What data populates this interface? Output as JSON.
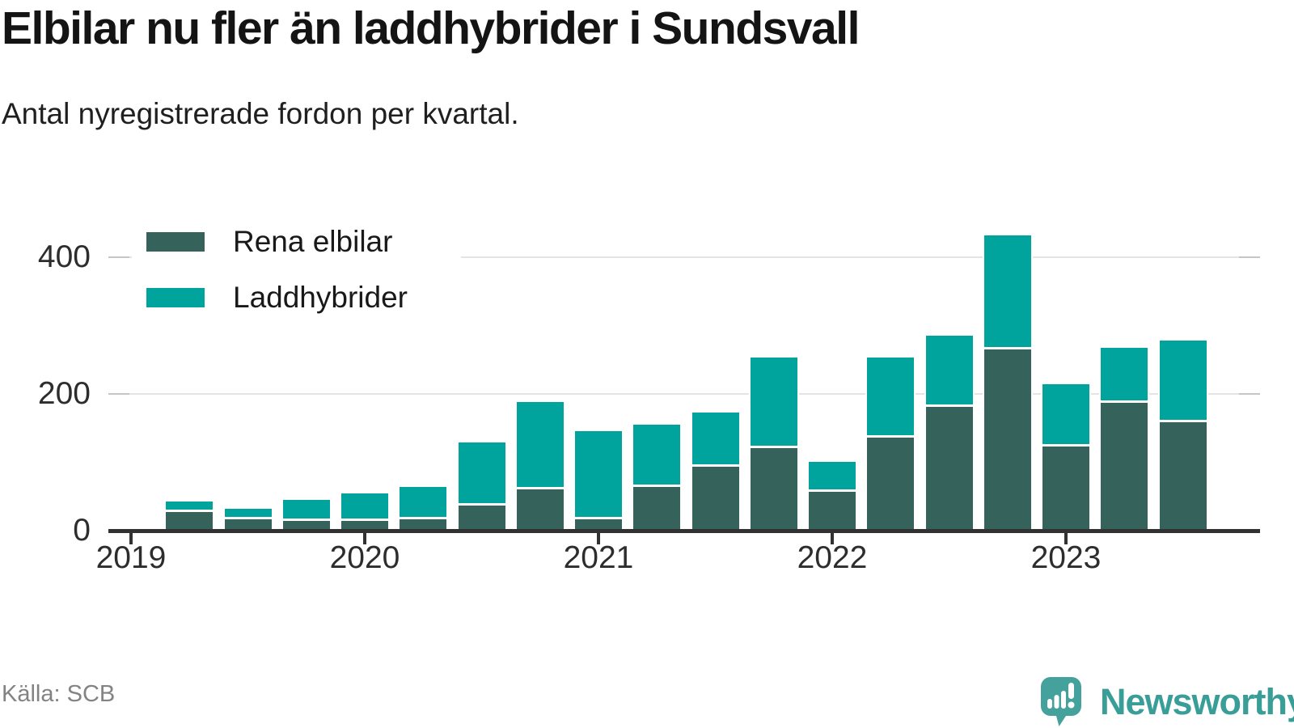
{
  "header": {
    "title": "Elbilar nu fler än laddhybrider i Sundsvall",
    "subtitle": "Antal nyregistrerade fordon per kvartal."
  },
  "chart_data": {
    "type": "bar",
    "stacked": true,
    "title": "Elbilar nu fler än laddhybrider i Sundsvall",
    "subtitle": "Antal nyregistrerade fordon per kvartal.",
    "categories": [
      "2019 K2",
      "2019 K3",
      "2019 K4",
      "2020 K1",
      "2020 K2",
      "2020 K3",
      "2020 K4",
      "2021 K1",
      "2021 K2",
      "2021 K3",
      "2021 K4",
      "2022 K1",
      "2022 K2",
      "2022 K3",
      "2022 K4",
      "2023 K1",
      "2023 K2",
      "2023 K3"
    ],
    "series": [
      {
        "name": "Rena elbilar",
        "color": "#35635b",
        "values": [
          27,
          17,
          14,
          14,
          16,
          37,
          60,
          17,
          64,
          94,
          121,
          57,
          136,
          181,
          265,
          123,
          187,
          159
        ]
      },
      {
        "name": "Laddhybrider",
        "color": "#00a49c",
        "values": [
          16,
          15,
          31,
          40,
          48,
          92,
          128,
          129,
          91,
          79,
          132,
          44,
          117,
          104,
          167,
          91,
          80,
          119
        ]
      }
    ],
    "xlabel": "",
    "ylabel": "",
    "x_tick_labels": [
      "2019",
      "2020",
      "2021",
      "2022",
      "2023"
    ],
    "y_ticks": [
      0,
      200,
      400
    ],
    "ylim": [
      0,
      470
    ],
    "grid": "horizontal",
    "legend_position": "top-left-inside"
  },
  "footer": {
    "source": "Källa: SCB",
    "brand": "Newsworthy"
  },
  "colors": {
    "elbilar": "#35635b",
    "laddhybrider": "#00a49c",
    "axis": "#323232",
    "gridline": "#e4e4e4",
    "brand_teal": "#3a9e98"
  }
}
